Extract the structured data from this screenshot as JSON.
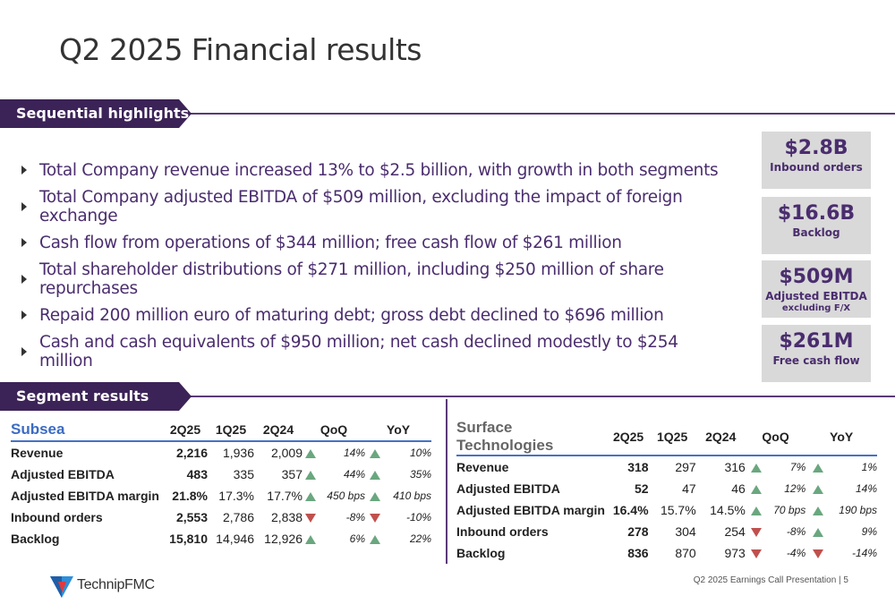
{
  "title": "Q2 2025 Financial results",
  "sections": {
    "highlights": "Sequential highlights",
    "segments": "Segment results"
  },
  "bullets": [
    "Total Company revenue increased 13% to $2.5 billion, with growth in both segments",
    "Total Company adjusted EBITDA of $509 million, excluding the impact of foreign exchange",
    "Cash flow from operations of $344 million; free cash flow of $261 million",
    "Total shareholder distributions of $271 million, including $250 million of share repurchases",
    "Repaid 200 million euro of maturing debt; gross debt declined to $696 million",
    "Cash and cash equivalents of $950 million; net cash declined modestly to $254 million"
  ],
  "kpis": [
    {
      "value": "$2.8B",
      "label": "Inbound orders",
      "sub": ""
    },
    {
      "value": "$16.6B",
      "label": "Backlog",
      "sub": ""
    },
    {
      "value": "$509M",
      "label": "Adjusted EBITDA",
      "sub": "excluding F/X"
    },
    {
      "value": "$261M",
      "label": "Free cash flow",
      "sub": ""
    }
  ],
  "subsea": {
    "name": "Subsea",
    "headers": [
      "2Q25",
      "1Q25",
      "2Q24",
      "QoQ",
      "YoY"
    ],
    "rows": [
      {
        "label": "Revenue",
        "q2": "2,216",
        "q1": "1,936",
        "py": "2,009",
        "qoq": "14%",
        "qoq_dir": "up",
        "yoy": "10%",
        "yoy_dir": "up"
      },
      {
        "label": "Adjusted EBITDA",
        "q2": "483",
        "q1": "335",
        "py": "357",
        "qoq": "44%",
        "qoq_dir": "up",
        "yoy": "35%",
        "yoy_dir": "up"
      },
      {
        "label": "Adjusted EBITDA margin",
        "q2": "21.8%",
        "q1": "17.3%",
        "py": "17.7%",
        "qoq": "450 bps",
        "qoq_dir": "up",
        "yoy": "410 bps",
        "yoy_dir": "up"
      },
      {
        "label": "Inbound orders",
        "q2": "2,553",
        "q1": "2,786",
        "py": "2,838",
        "qoq": "-8%",
        "qoq_dir": "down",
        "yoy": "-10%",
        "yoy_dir": "down"
      },
      {
        "label": "Backlog",
        "q2": "15,810",
        "q1": "14,946",
        "py": "12,926",
        "qoq": "6%",
        "qoq_dir": "up",
        "yoy": "22%",
        "yoy_dir": "up"
      }
    ]
  },
  "surface": {
    "name": "Surface Technologies",
    "headers": [
      "2Q25",
      "1Q25",
      "2Q24",
      "QoQ",
      "YoY"
    ],
    "rows": [
      {
        "label": "Revenue",
        "q2": "318",
        "q1": "297",
        "py": "316",
        "qoq": "7%",
        "qoq_dir": "up",
        "yoy": "1%",
        "yoy_dir": "up"
      },
      {
        "label": "Adjusted EBITDA",
        "q2": "52",
        "q1": "47",
        "py": "46",
        "qoq": "12%",
        "qoq_dir": "up",
        "yoy": "14%",
        "yoy_dir": "up"
      },
      {
        "label": "Adjusted EBITDA margin",
        "q2": "16.4%",
        "q1": "15.7%",
        "py": "14.5%",
        "qoq": "70 bps",
        "qoq_dir": "up",
        "yoy": "190 bps",
        "yoy_dir": "up"
      },
      {
        "label": "Inbound orders",
        "q2": "278",
        "q1": "304",
        "py": "254",
        "qoq": "-8%",
        "qoq_dir": "down",
        "yoy": "9%",
        "yoy_dir": "up"
      },
      {
        "label": "Backlog",
        "q2": "836",
        "q1": "870",
        "py": "973",
        "qoq": "-4%",
        "qoq_dir": "down",
        "yoy": "-14%",
        "yoy_dir": "down"
      }
    ]
  },
  "footer": "Q2 2025 Earnings Call Presentation  |  5",
  "logo_text": "TechnipFMC",
  "colors": {
    "purple": "#3c2357",
    "accent_blue": "#3b6bc2",
    "up": "#6aa77f",
    "down": "#c0504d",
    "kpi_bg": "#d9d9d9"
  }
}
